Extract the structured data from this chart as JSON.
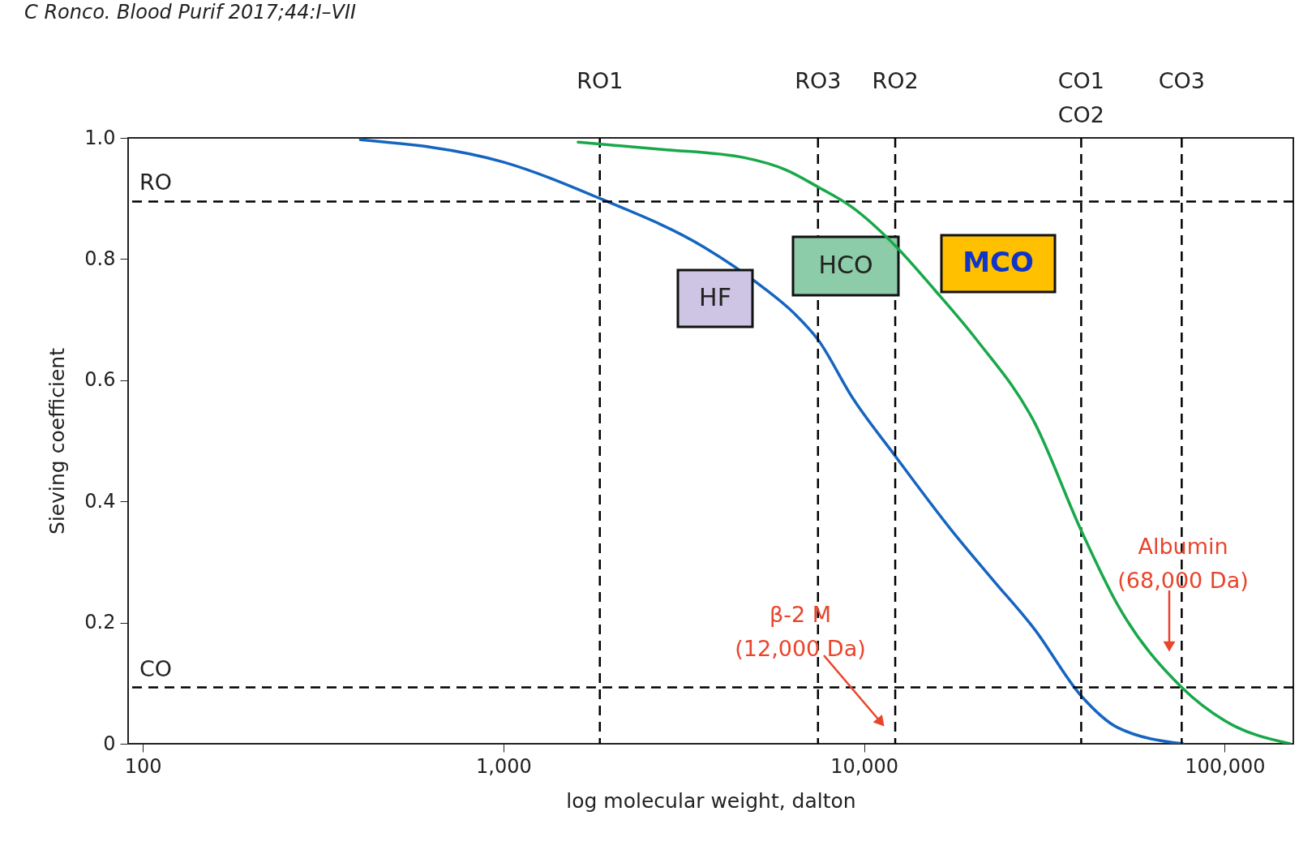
{
  "chart_data": {
    "type": "line",
    "xlabel": "log molecular weight, dalton",
    "ylabel": "Sieving coefficient",
    "log": "x",
    "x": [
      401,
      1000,
      1850,
      3590,
      5200,
      6410,
      7450,
      9290,
      12200,
      17500,
      22800,
      29700,
      40000,
      50400,
      76700
    ],
    "series": [
      {
        "color": "#1565c0",
        "values": [
          0.997,
          0.96,
          0.9,
          0.82,
          0.755,
          0.71,
          0.667,
          0.571,
          0.475,
          0.352,
          0.27,
          0.189,
          0.079,
          0.027,
          0
        ]
      },
      {
        "color": "#18a84a",
        "x": [
          1610,
          2750,
          4680,
          6080,
          7450,
          9290,
          12200,
          15700,
          20500,
          29700,
          40000,
          50400,
          76000,
          100000,
          152000
        ],
        "values": [
          0.993,
          0.981,
          0.967,
          0.947,
          0.919,
          0.885,
          0.822,
          0.749,
          0.667,
          0.53,
          0.352,
          0.23,
          0.093,
          0.038,
          0
        ]
      }
    ],
    "xlim": [
      91,
      155000
    ],
    "xticks": [
      100,
      {
        "value": 1000,
        "label": "1,000"
      },
      {
        "value": 10000,
        "label": "10,000"
      },
      {
        "value": 100000,
        "label": "100,000"
      }
    ],
    "ylim": [
      0,
      1
    ],
    "yticks": [
      0,
      0.2,
      0.4,
      0.6,
      0.8,
      {
        "value": 1,
        "label": "1.0"
      }
    ],
    "grid": false,
    "line_style": "solid",
    "marker": "none",
    "ref_lines": [
      {
        "axis": "y",
        "value": 0.895,
        "label": "RO",
        "color": "#000000",
        "line_style": "dashed"
      },
      {
        "axis": "y",
        "value": 0.093,
        "label": "CO",
        "color": "#000000",
        "line_style": "dashed"
      },
      {
        "axis": "x",
        "value": 1850,
        "label": "RO1",
        "color": "#000000",
        "line_style": "dashed"
      },
      {
        "axis": "x",
        "value": 7450,
        "label": "RO3",
        "color": "#000000",
        "line_style": "dashed"
      },
      {
        "axis": "x",
        "value": 12200,
        "label": "RO2",
        "color": "#000000",
        "line_style": "dashed"
      },
      {
        "axis": "x",
        "value": 40000,
        "label": "CO1\nCO2",
        "color": "#000000",
        "line_style": "dashed"
      },
      {
        "axis": "x",
        "value": 76000,
        "label": "CO3",
        "color": "#000000",
        "line_style": "dashed"
      }
    ],
    "annotations": [
      "C Ronco. Blood Purif 2017;44:I–VII",
      "HF",
      "HCO",
      "MCO",
      "β-2 M\n(12,000 Da)",
      "Albumin\n(68,000 Da)"
    ]
  }
}
